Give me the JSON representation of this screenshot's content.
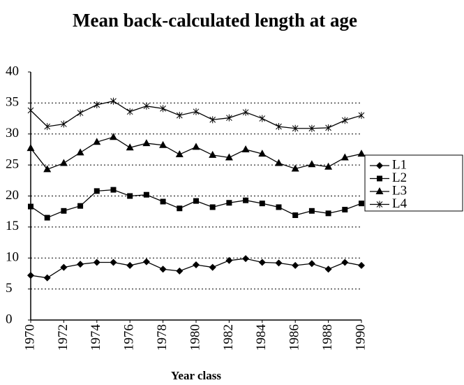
{
  "chart_data": {
    "type": "line",
    "title": "Mean back-calculated length at age",
    "xlabel": "Year class",
    "x": [
      1970,
      1971,
      1972,
      1973,
      1974,
      1975,
      1976,
      1977,
      1978,
      1979,
      1980,
      1981,
      1982,
      1983,
      1984,
      1985,
      1986,
      1987,
      1988,
      1989,
      1990
    ],
    "series": [
      {
        "name": "L1",
        "color": "#000000",
        "marker": "diamond",
        "values": [
          7.2,
          6.8,
          8.5,
          9,
          9.3,
          9.3,
          8.8,
          9.4,
          8.2,
          7.9,
          8.9,
          8.5,
          9.6,
          9.9,
          9.3,
          9.2,
          8.8,
          9.1,
          8.2,
          9.3,
          8.8
        ]
      },
      {
        "name": "L2",
        "color": "#000000",
        "marker": "square",
        "values": [
          18.3,
          16.5,
          17.6,
          18.4,
          20.8,
          21,
          20,
          20.2,
          19.1,
          18,
          19.2,
          18.2,
          18.9,
          19.3,
          18.8,
          18.2,
          16.9,
          17.6,
          17.2,
          17.8,
          18.8
        ]
      },
      {
        "name": "L3",
        "color": "#000000",
        "marker": "triangle",
        "values": [
          27.7,
          24.3,
          25.3,
          27,
          28.7,
          29.5,
          27.8,
          28.5,
          28.2,
          26.7,
          27.9,
          26.6,
          26.2,
          27.5,
          26.8,
          25.3,
          24.4,
          25.1,
          24.7,
          26.2,
          26.8
        ]
      },
      {
        "name": "L4",
        "color": "#000000",
        "marker": "star",
        "values": [
          33.8,
          31.2,
          31.6,
          33.4,
          34.7,
          35.3,
          33.6,
          34.5,
          34.1,
          33,
          33.6,
          32.3,
          32.6,
          33.5,
          32.5,
          31.2,
          30.9,
          30.9,
          31,
          32.2,
          33
        ]
      }
    ],
    "xlim": [
      1970,
      1990
    ],
    "xticks": [
      1970,
      1972,
      1974,
      1976,
      1978,
      1980,
      1982,
      1984,
      1986,
      1988,
      1990
    ],
    "ylim": [
      0,
      40
    ],
    "yticks": [
      0,
      5,
      10,
      15,
      20,
      25,
      30,
      35,
      40
    ],
    "grid": true,
    "legend": "right"
  }
}
